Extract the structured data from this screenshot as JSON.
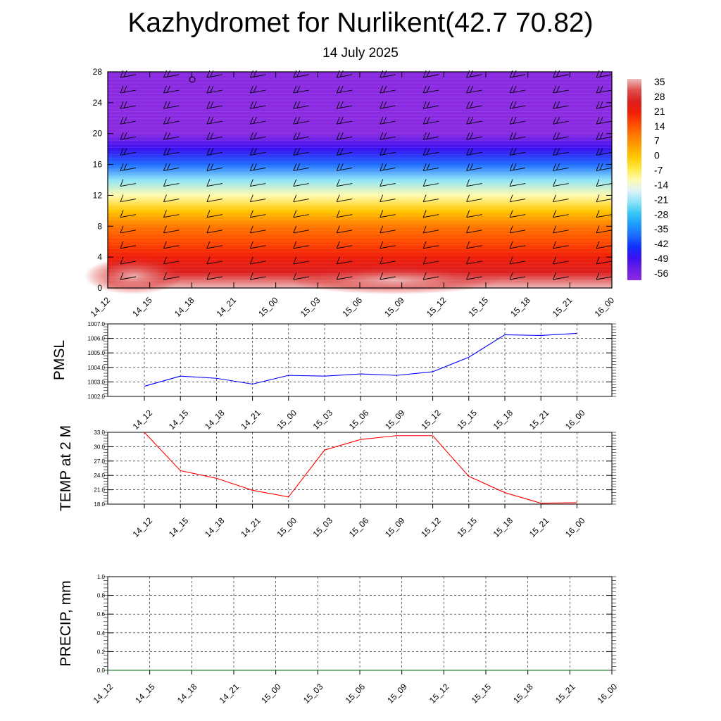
{
  "title": "Kazhydromet for Nurlikent(42.7 70.82)",
  "subtitle": "14 July 2025",
  "colors": {
    "pmsl_line": "#0000ff",
    "temp_line": "#ff0000",
    "precip_line": "#006400",
    "grid": "#000000",
    "colorbar": [
      "#8a2be2",
      "#6a1ee6",
      "#3a10f0",
      "#1030ff",
      "#1e6cff",
      "#1e9cff",
      "#39c6f3",
      "#8ee4f7",
      "#dff3f7",
      "#fffbb0",
      "#ffe840",
      "#ffc800",
      "#ffa000",
      "#ff7800",
      "#ff4a00",
      "#f01e0a",
      "#dc1e1e",
      "#e05050",
      "#ecbcbc"
    ]
  },
  "chart_data": [
    {
      "type": "heatmap",
      "x_ticks": [
        "14_12",
        "14_15",
        "14_18",
        "14_21",
        "15_00",
        "15_03",
        "15_06",
        "15_09",
        "15_12",
        "15_15",
        "15_18",
        "15_21",
        "16_00"
      ],
      "y_ticks": [
        "0",
        "4",
        "8",
        "12",
        "16",
        "20",
        "24",
        "28"
      ],
      "ylim": [
        0,
        28
      ],
      "colorbar_labels": [
        "35",
        "28",
        "21",
        "14",
        "7",
        "0",
        "-7",
        "-14",
        "-21",
        "-28",
        "-35",
        "-42",
        "-49",
        "-56"
      ],
      "levels": [
        0,
        2,
        4,
        6,
        8,
        10,
        12,
        14,
        16,
        18,
        20,
        22,
        24,
        26,
        28
      ],
      "temperature_by_level": [
        34,
        26,
        21,
        14,
        7,
        1,
        -9,
        -22,
        -36,
        -47,
        -55,
        -57,
        -57,
        -57,
        -57
      ],
      "wind_barbs": true
    },
    {
      "type": "line",
      "ylabel": "PMSL",
      "x": [
        "14_12",
        "14_15",
        "14_18",
        "14_21",
        "15_00",
        "15_03",
        "15_06",
        "15_09",
        "15_12",
        "15_15",
        "15_18",
        "15_21",
        "16_00"
      ],
      "values": [
        1002.7,
        1003.4,
        1003.25,
        1002.85,
        1003.45,
        1003.4,
        1003.55,
        1003.45,
        1003.7,
        1004.7,
        1006.25,
        1006.2,
        1006.35
      ],
      "ylim": [
        1002.0,
        1007.0
      ],
      "y_ticks": [
        "1007.0",
        "1006.0",
        "1005.0",
        "1004.0",
        "1003.0",
        "1002.0"
      ],
      "grid": true
    },
    {
      "type": "line",
      "ylabel": "TEMP at 2 M",
      "x": [
        "14_12",
        "14_15",
        "14_18",
        "14_21",
        "15_00",
        "15_03",
        "15_06",
        "15_09",
        "15_12",
        "15_15",
        "15_18",
        "15_21",
        "16_00"
      ],
      "values": [
        33.0,
        25.0,
        23.4,
        20.9,
        19.5,
        29.3,
        31.5,
        32.3,
        32.3,
        23.8,
        20.4,
        18.2,
        18.3
      ],
      "ylim": [
        18.0,
        33.0
      ],
      "y_ticks": [
        "33.0",
        "30.0",
        "27.0",
        "24.0",
        "21.0",
        "18.0"
      ],
      "grid": true
    },
    {
      "type": "line",
      "ylabel": "PRECIP, mm",
      "x": [
        "14_12",
        "14_15",
        "14_18",
        "14_21",
        "15_00",
        "15_03",
        "15_06",
        "15_09",
        "15_12",
        "15_15",
        "15_18",
        "15_21",
        "16_00"
      ],
      "values": [
        0,
        0,
        0,
        0,
        0,
        0,
        0,
        0,
        0,
        0,
        0,
        0,
        0
      ],
      "ylim": [
        0,
        1.0
      ],
      "y_ticks": [
        "1.0",
        "0.8",
        "0.6",
        "0.4",
        "0.2",
        "0.0"
      ],
      "grid": true
    }
  ]
}
